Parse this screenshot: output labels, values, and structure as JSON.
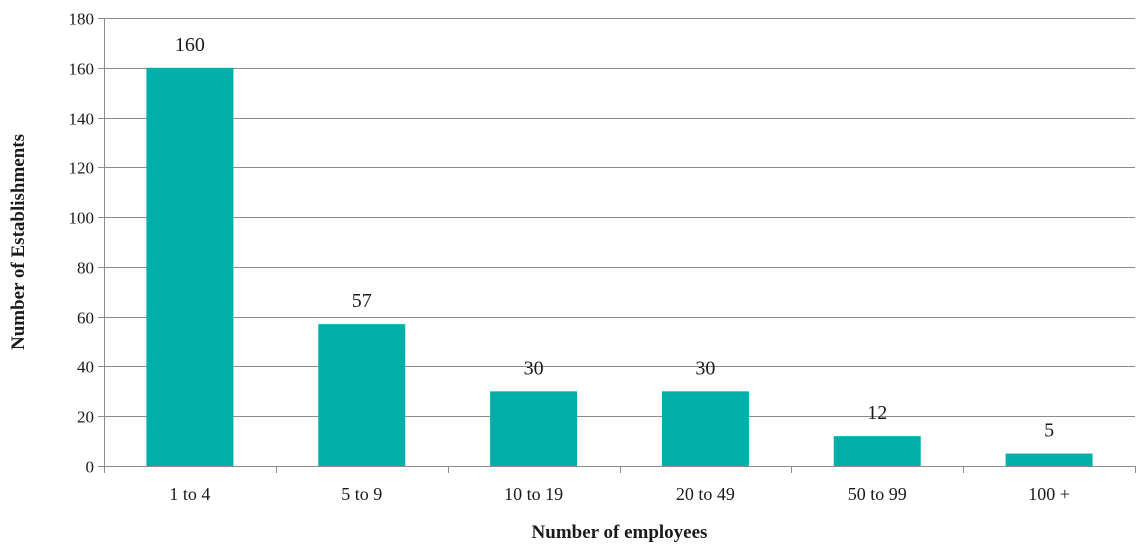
{
  "chart_data": {
    "type": "bar",
    "categories": [
      "1 to 4",
      "5 to 9",
      "10 to 19",
      "20 to 49",
      "50 to 99",
      "100 +"
    ],
    "values": [
      160,
      57,
      30,
      30,
      12,
      5
    ],
    "data_labels": [
      "160",
      "57",
      "30",
      "30",
      "12",
      "5"
    ],
    "xlabel": "Number of employees",
    "ylabel": "Number of Establishments",
    "ylim": [
      0,
      180
    ],
    "yticks": [
      0,
      20,
      40,
      60,
      80,
      100,
      120,
      140,
      160,
      180
    ],
    "grid": true,
    "bar_color": "#00b0a8"
  }
}
